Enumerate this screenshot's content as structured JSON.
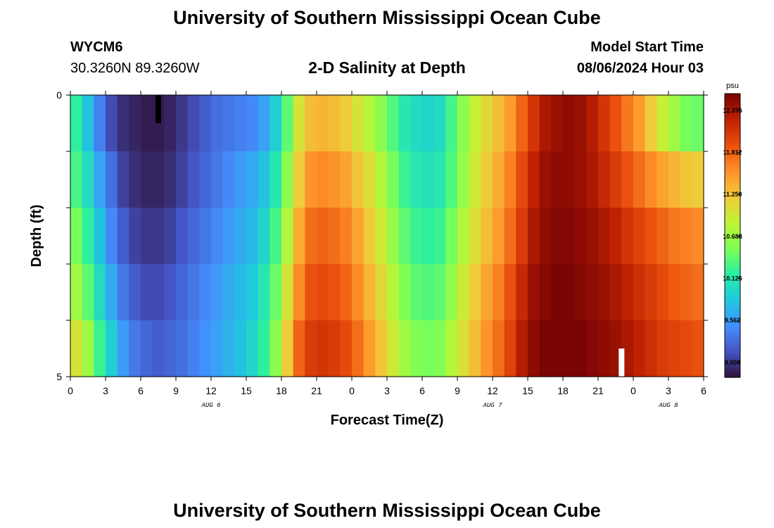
{
  "header": {
    "title": "University of Southern Mississippi Ocean Cube",
    "station": "WYCM6",
    "coords": "30.3260N  89.3260W",
    "subtitle": "2-D Salinity at Depth",
    "model_start_label": "Model Start Time",
    "model_start_value": "08/06/2024 Hour 03"
  },
  "footer": {
    "title": "University of Southern Mississippi Ocean Cube"
  },
  "chart_data": {
    "type": "heatmap",
    "xlabel": "Forecast Time(Z)",
    "ylabel": "Depth (ft)",
    "x_tick_labels": [
      "0",
      "3",
      "6",
      "9",
      "12",
      "15",
      "18",
      "21",
      "0",
      "3",
      "6",
      "9",
      "12",
      "15",
      "18",
      "21",
      "0",
      "3",
      "6"
    ],
    "x_date_labels": [
      {
        "label": "AUG 6",
        "at_hour": 12
      },
      {
        "label": "AUG 7",
        "at_hour": 36
      },
      {
        "label": "AUG 8",
        "at_hour": 51
      }
    ],
    "xlim_hours": [
      0,
      54
    ],
    "y_tick_labels": [
      {
        "label": "0",
        "depth": 0
      },
      {
        "label": "5",
        "depth": 5
      }
    ],
    "ylim_depth_ft": [
      0,
      5
    ],
    "colorbar": {
      "unit": "psu",
      "tick_labels": [
        "12.375",
        "11.812",
        "11.250",
        "10.688",
        "10.125",
        "9.562",
        "9.000"
      ],
      "range": [
        8.8,
        12.6
      ],
      "palette": [
        "#30123b",
        "#4454c4",
        "#4490fe",
        "#1fc8de",
        "#29efa2",
        "#7dff56",
        "#c1f334",
        "#f1ca3a",
        "#fe922a",
        "#ea4f0d",
        "#be2102",
        "#7a0403"
      ]
    },
    "markers": [
      {
        "type": "bar",
        "color": "#000000",
        "hour": 7.5,
        "depth_from": 0,
        "depth_to": 0.5
      },
      {
        "type": "bar",
        "color": "#ffffff",
        "hour": 47.0,
        "depth_from": 4.5,
        "depth_to": 5
      }
    ],
    "hours": [
      0,
      1,
      2,
      3,
      4,
      5,
      6,
      7,
      8,
      9,
      10,
      11,
      12,
      13,
      14,
      15,
      16,
      17,
      18,
      19,
      20,
      21,
      22,
      23,
      24,
      25,
      26,
      27,
      28,
      29,
      30,
      31,
      32,
      33,
      34,
      35,
      36,
      37,
      38,
      39,
      40,
      41,
      42,
      43,
      44,
      45,
      46,
      47,
      48,
      49,
      50,
      51,
      52,
      53,
      54
    ],
    "depth_layers": [
      "0-1",
      "1-2",
      "2-3",
      "3-4",
      "4-5"
    ],
    "salinity_psu": [
      [
        10.2,
        9.8,
        9.4,
        9.1,
        8.95,
        8.9,
        8.85,
        8.85,
        8.9,
        9.0,
        9.1,
        9.2,
        9.3,
        9.35,
        9.4,
        9.45,
        9.6,
        9.9,
        10.4,
        11.0,
        11.3,
        11.35,
        11.3,
        11.2,
        11.0,
        10.8,
        10.6,
        10.35,
        10.1,
        10.0,
        9.95,
        10.0,
        10.3,
        10.6,
        10.9,
        11.1,
        11.3,
        11.5,
        11.8,
        12.1,
        12.35,
        12.45,
        12.5,
        12.45,
        12.3,
        12.1,
        11.9,
        11.7,
        11.5,
        11.2,
        10.9,
        10.7,
        10.5,
        10.45,
        10.4
      ],
      [
        10.3,
        10.0,
        9.6,
        9.3,
        9.05,
        8.95,
        8.9,
        8.9,
        8.95,
        9.05,
        9.15,
        9.25,
        9.35,
        9.45,
        9.55,
        9.65,
        9.8,
        10.1,
        10.6,
        11.2,
        11.55,
        11.6,
        11.55,
        11.45,
        11.25,
        11.05,
        10.8,
        10.5,
        10.25,
        10.1,
        10.05,
        10.1,
        10.35,
        10.65,
        10.95,
        11.2,
        11.4,
        11.65,
        11.95,
        12.25,
        12.45,
        12.5,
        12.5,
        12.45,
        12.35,
        12.2,
        12.05,
        11.9,
        11.75,
        11.6,
        11.45,
        11.35,
        11.25,
        11.2,
        11.1
      ],
      [
        10.5,
        10.2,
        9.8,
        9.45,
        9.2,
        9.05,
        9.0,
        9.0,
        9.05,
        9.15,
        9.25,
        9.35,
        9.45,
        9.55,
        9.65,
        9.75,
        9.95,
        10.3,
        10.8,
        11.4,
        11.75,
        11.8,
        11.75,
        11.65,
        11.45,
        11.2,
        10.95,
        10.65,
        10.4,
        10.25,
        10.2,
        10.25,
        10.5,
        10.8,
        11.05,
        11.3,
        11.5,
        11.75,
        12.05,
        12.35,
        12.5,
        12.55,
        12.55,
        12.5,
        12.45,
        12.35,
        12.25,
        12.1,
        12.0,
        11.9,
        11.8,
        11.7,
        11.65,
        11.6,
        11.5
      ],
      [
        10.7,
        10.4,
        10.0,
        9.65,
        9.35,
        9.2,
        9.1,
        9.1,
        9.15,
        9.25,
        9.35,
        9.45,
        9.55,
        9.65,
        9.75,
        9.85,
        10.1,
        10.45,
        11.0,
        11.6,
        11.9,
        11.95,
        11.9,
        11.8,
        11.6,
        11.35,
        11.1,
        10.8,
        10.55,
        10.4,
        10.35,
        10.4,
        10.65,
        10.95,
        11.2,
        11.45,
        11.65,
        11.9,
        12.2,
        12.45,
        12.55,
        12.6,
        12.6,
        12.55,
        12.5,
        12.45,
        12.35,
        12.25,
        12.15,
        12.05,
        11.95,
        11.85,
        11.8,
        11.75,
        11.7
      ],
      [
        11.0,
        10.7,
        10.25,
        9.9,
        9.55,
        9.35,
        9.25,
        9.2,
        9.25,
        9.3,
        9.4,
        9.5,
        9.6,
        9.7,
        9.8,
        9.95,
        10.2,
        10.6,
        11.2,
        11.8,
        12.05,
        12.1,
        12.05,
        11.95,
        11.75,
        11.5,
        11.25,
        10.95,
        10.7,
        10.55,
        10.5,
        10.55,
        10.8,
        11.05,
        11.3,
        11.55,
        11.75,
        12.0,
        12.3,
        12.5,
        12.6,
        12.65,
        12.65,
        12.6,
        12.55,
        12.5,
        12.45,
        12.35,
        12.25,
        12.15,
        12.05,
        12.0,
        11.95,
        11.9,
        11.85
      ]
    ]
  }
}
